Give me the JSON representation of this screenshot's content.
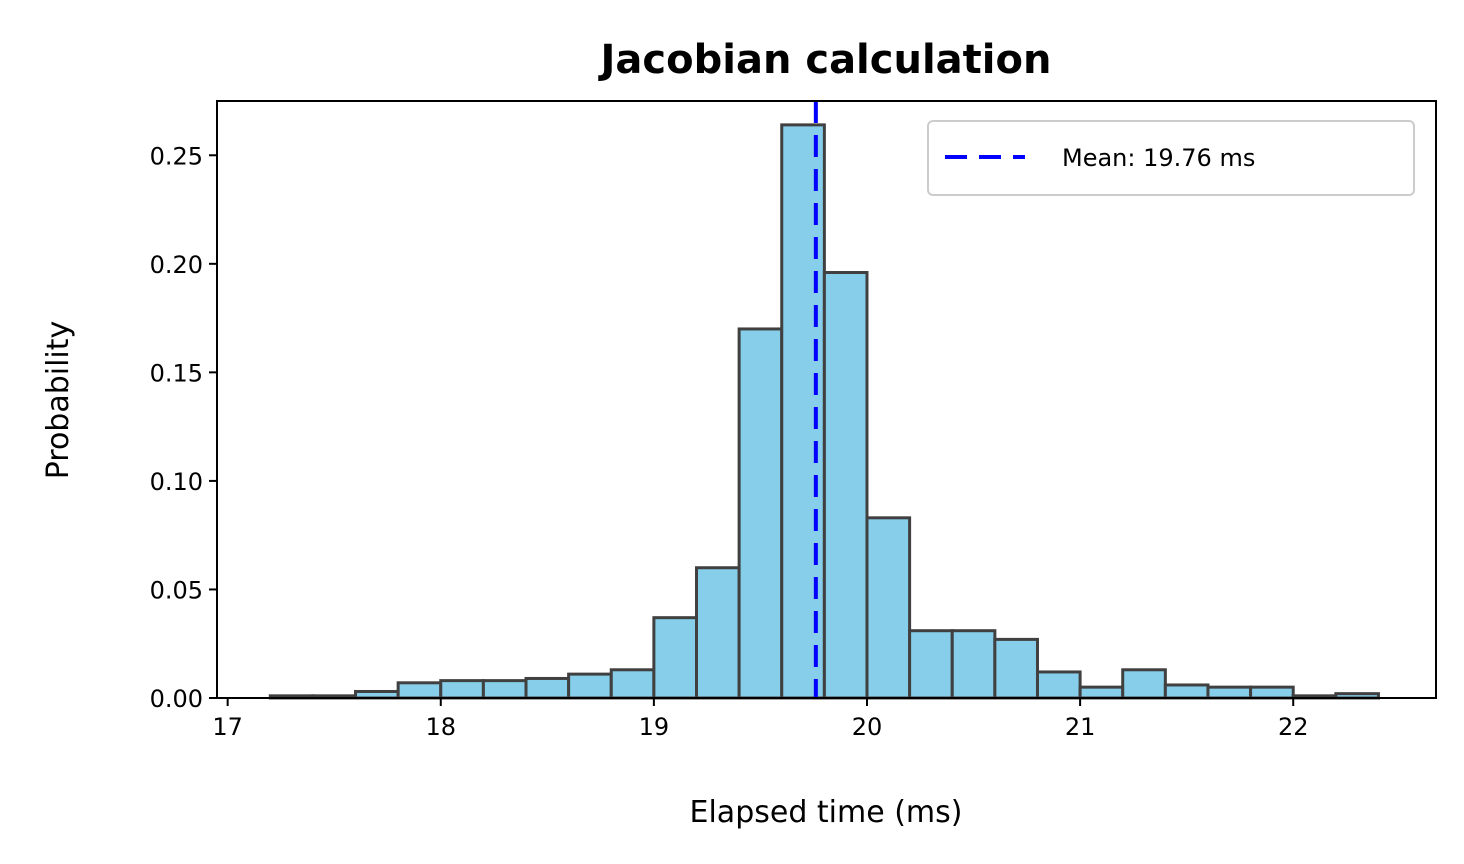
{
  "chart_data": {
    "type": "bar",
    "title": "Jacobian calculation",
    "xlabel": "Elapsed time (ms)",
    "ylabel": "Probability",
    "xlim": [
      16.95,
      22.67
    ],
    "ylim": [
      0,
      0.275
    ],
    "xticks": [
      17,
      18,
      19,
      20,
      21,
      22
    ],
    "xtick_labels": [
      "17",
      "18",
      "19",
      "20",
      "21",
      "22"
    ],
    "yticks": [
      0.0,
      0.05,
      0.1,
      0.15,
      0.2,
      0.25
    ],
    "ytick_labels": [
      "0.00",
      "0.05",
      "0.10",
      "0.15",
      "0.20",
      "0.25"
    ],
    "bin_edges": [
      17.2,
      17.4,
      17.6,
      17.8,
      18.0,
      18.2,
      18.4,
      18.6,
      18.8,
      19.0,
      19.2,
      19.4,
      19.6,
      19.8,
      20.0,
      20.2,
      20.4,
      20.6,
      20.8,
      21.0,
      21.2,
      21.4,
      21.6,
      21.8,
      22.0,
      22.2,
      22.4
    ],
    "values": [
      0.001,
      0.001,
      0.003,
      0.007,
      0.008,
      0.008,
      0.009,
      0.011,
      0.013,
      0.037,
      0.06,
      0.17,
      0.264,
      0.196,
      0.083,
      0.031,
      0.031,
      0.027,
      0.012,
      0.005,
      0.013,
      0.006,
      0.005,
      0.005,
      0.001,
      0.002
    ],
    "bar_color": "#87ceeb",
    "bar_edge_color": "#404040",
    "mean_line": {
      "value": 19.76,
      "color": "#0000ff",
      "style": "dashed"
    },
    "legend": {
      "entries": [
        "Mean: 19.76 ms"
      ],
      "placement": "top-right"
    },
    "grid": false
  }
}
